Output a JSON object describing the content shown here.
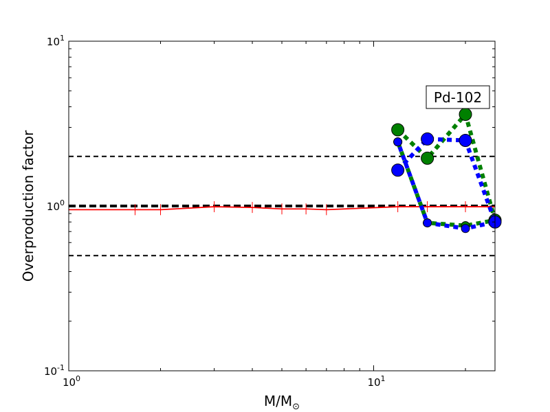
{
  "chart_data": {
    "type": "line",
    "title": "",
    "xlabel": "M/M",
    "xlabel_sub": "⊙",
    "ylabel": "Overproduction factor",
    "xscale": "log",
    "yscale": "log",
    "xlim": [
      1,
      25
    ],
    "ylim": [
      0.1,
      10
    ],
    "grid": false,
    "x_ticks": [
      {
        "value": 1,
        "base": "10",
        "exp": "0"
      },
      {
        "value": 10,
        "base": "10",
        "exp": "1"
      }
    ],
    "y_ticks": [
      {
        "value": 0.1,
        "base": "10",
        "exp": "-1"
      },
      {
        "value": 1,
        "base": "10",
        "exp": "0"
      },
      {
        "value": 10,
        "base": "10",
        "exp": "1"
      }
    ],
    "reference_lines": [
      {
        "y": 2.0,
        "style": "dashed",
        "color": "#000000"
      },
      {
        "y": 1.0,
        "style": "dashed-bold",
        "color": "#000000"
      },
      {
        "y": 0.5,
        "style": "dashed",
        "color": "#000000"
      }
    ],
    "series": [
      {
        "color": "#ff0000",
        "line": "solid",
        "marker": "tick",
        "x": [
          1.0,
          1.65,
          2.0,
          3.0,
          4.0,
          5.0,
          6.0,
          7.0,
          12.0,
          15.0,
          20.0,
          25.0
        ],
        "y": [
          0.95,
          0.95,
          0.95,
          0.99,
          0.98,
          0.96,
          0.96,
          0.95,
          0.99,
          0.99,
          0.99,
          0.99
        ]
      },
      {
        "color": "#008000",
        "line": "dotted",
        "marker": "circle",
        "x": [
          12.0,
          15.0,
          20.0,
          25.0,
          20.0,
          15.0,
          12.0
        ],
        "y": [
          2.9,
          1.95,
          3.6,
          0.82,
          0.76,
          0.79,
          2.45
        ]
      },
      {
        "color": "#0000ff",
        "line": "dotted",
        "marker": "circle",
        "x": [
          12.0,
          15.0,
          20.0,
          25.0,
          20.0,
          15.0,
          12.0
        ],
        "y": [
          1.65,
          2.55,
          2.5,
          0.8,
          0.73,
          0.79,
          2.45
        ]
      }
    ],
    "annotation": {
      "text": "Pd-102"
    }
  }
}
